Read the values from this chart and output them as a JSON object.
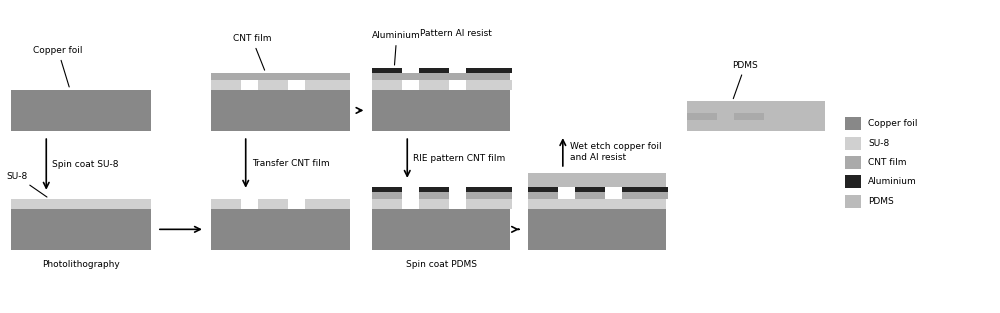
{
  "colors": {
    "copper_foil": "#888888",
    "su8": "#d0d0d0",
    "cnt_film": "#aaaaaa",
    "aluminium": "#222222",
    "pdms": "#bbbbbb",
    "white": "#ffffff",
    "background": "#ffffff",
    "text": "#000000"
  },
  "legend_items": [
    {
      "label": "Copper foil",
      "color": "#888888"
    },
    {
      "label": "SU-8",
      "color": "#d0d0d0"
    },
    {
      "label": "CNT film",
      "color": "#aaaaaa"
    },
    {
      "label": "Aluminium",
      "color": "#222222"
    },
    {
      "label": "PDMS",
      "color": "#bbbbbb"
    }
  ],
  "fs": 6.5
}
